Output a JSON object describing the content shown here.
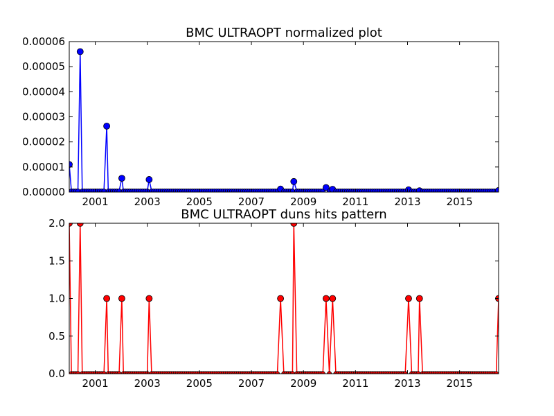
{
  "chart_data": [
    {
      "type": "line",
      "title": "BMC ULTRAOPT normalized plot",
      "xlabel": "",
      "ylabel": "",
      "xlim": [
        2000.0,
        2016.5
      ],
      "ylim": [
        0.0,
        6e-05
      ],
      "x_ticks": [
        2001,
        2003,
        2005,
        2007,
        2009,
        2011,
        2013,
        2015
      ],
      "x_tick_labels": [
        "2001",
        "2003",
        "2005",
        "2007",
        "2009",
        "2011",
        "2013",
        "2015"
      ],
      "y_ticks": [
        0,
        1e-05,
        2e-05,
        3e-05,
        4e-05,
        5e-05,
        6e-05
      ],
      "y_tick_labels": [
        "0.00000",
        "0.00001",
        "0.00002",
        "0.00003",
        "0.00004",
        "0.00005",
        "0.00006"
      ],
      "grid": false,
      "color": "#0000ff",
      "baseline_y": 4e-07,
      "sample_step": 0.0833,
      "spikes": [
        {
          "x": 2000.0,
          "y": 1.1e-05
        },
        {
          "x": 2000.42,
          "y": 5.6e-05
        },
        {
          "x": 2001.44,
          "y": 2.63e-05
        },
        {
          "x": 2002.02,
          "y": 5.5e-06
        },
        {
          "x": 2003.07,
          "y": 5e-06
        },
        {
          "x": 2008.12,
          "y": 1.2e-06
        },
        {
          "x": 2008.63,
          "y": 4.2e-06
        },
        {
          "x": 2009.87,
          "y": 1.8e-06
        },
        {
          "x": 2010.12,
          "y": 1.1e-06
        },
        {
          "x": 2013.04,
          "y": 9e-07
        },
        {
          "x": 2013.46,
          "y": 5e-07
        },
        {
          "x": 2016.5,
          "y": 6e-07
        }
      ]
    },
    {
      "type": "line",
      "title": "BMC ULTRAOPT duns hits pattern",
      "xlabel": "",
      "ylabel": "",
      "xlim": [
        2000.0,
        2016.5
      ],
      "ylim": [
        0.0,
        2.0
      ],
      "x_ticks": [
        2001,
        2003,
        2005,
        2007,
        2009,
        2011,
        2013,
        2015
      ],
      "x_tick_labels": [
        "2001",
        "2003",
        "2005",
        "2007",
        "2009",
        "2011",
        "2013",
        "2015"
      ],
      "y_ticks": [
        0,
        0.5,
        1.0,
        1.5,
        2.0
      ],
      "y_tick_labels": [
        "0.0",
        "0.5",
        "1.0",
        "1.5",
        "2.0"
      ],
      "grid": false,
      "color": "#ff0000",
      "baseline_y": 0,
      "sample_step": 0.0833,
      "spikes": [
        {
          "x": 2000.0,
          "y": 2
        },
        {
          "x": 2000.42,
          "y": 2
        },
        {
          "x": 2001.44,
          "y": 1
        },
        {
          "x": 2002.02,
          "y": 1
        },
        {
          "x": 2003.07,
          "y": 1
        },
        {
          "x": 2008.12,
          "y": 1
        },
        {
          "x": 2008.63,
          "y": 2
        },
        {
          "x": 2009.87,
          "y": 1
        },
        {
          "x": 2010.12,
          "y": 1
        },
        {
          "x": 2013.04,
          "y": 1
        },
        {
          "x": 2013.46,
          "y": 1
        },
        {
          "x": 2016.5,
          "y": 1
        }
      ]
    }
  ]
}
